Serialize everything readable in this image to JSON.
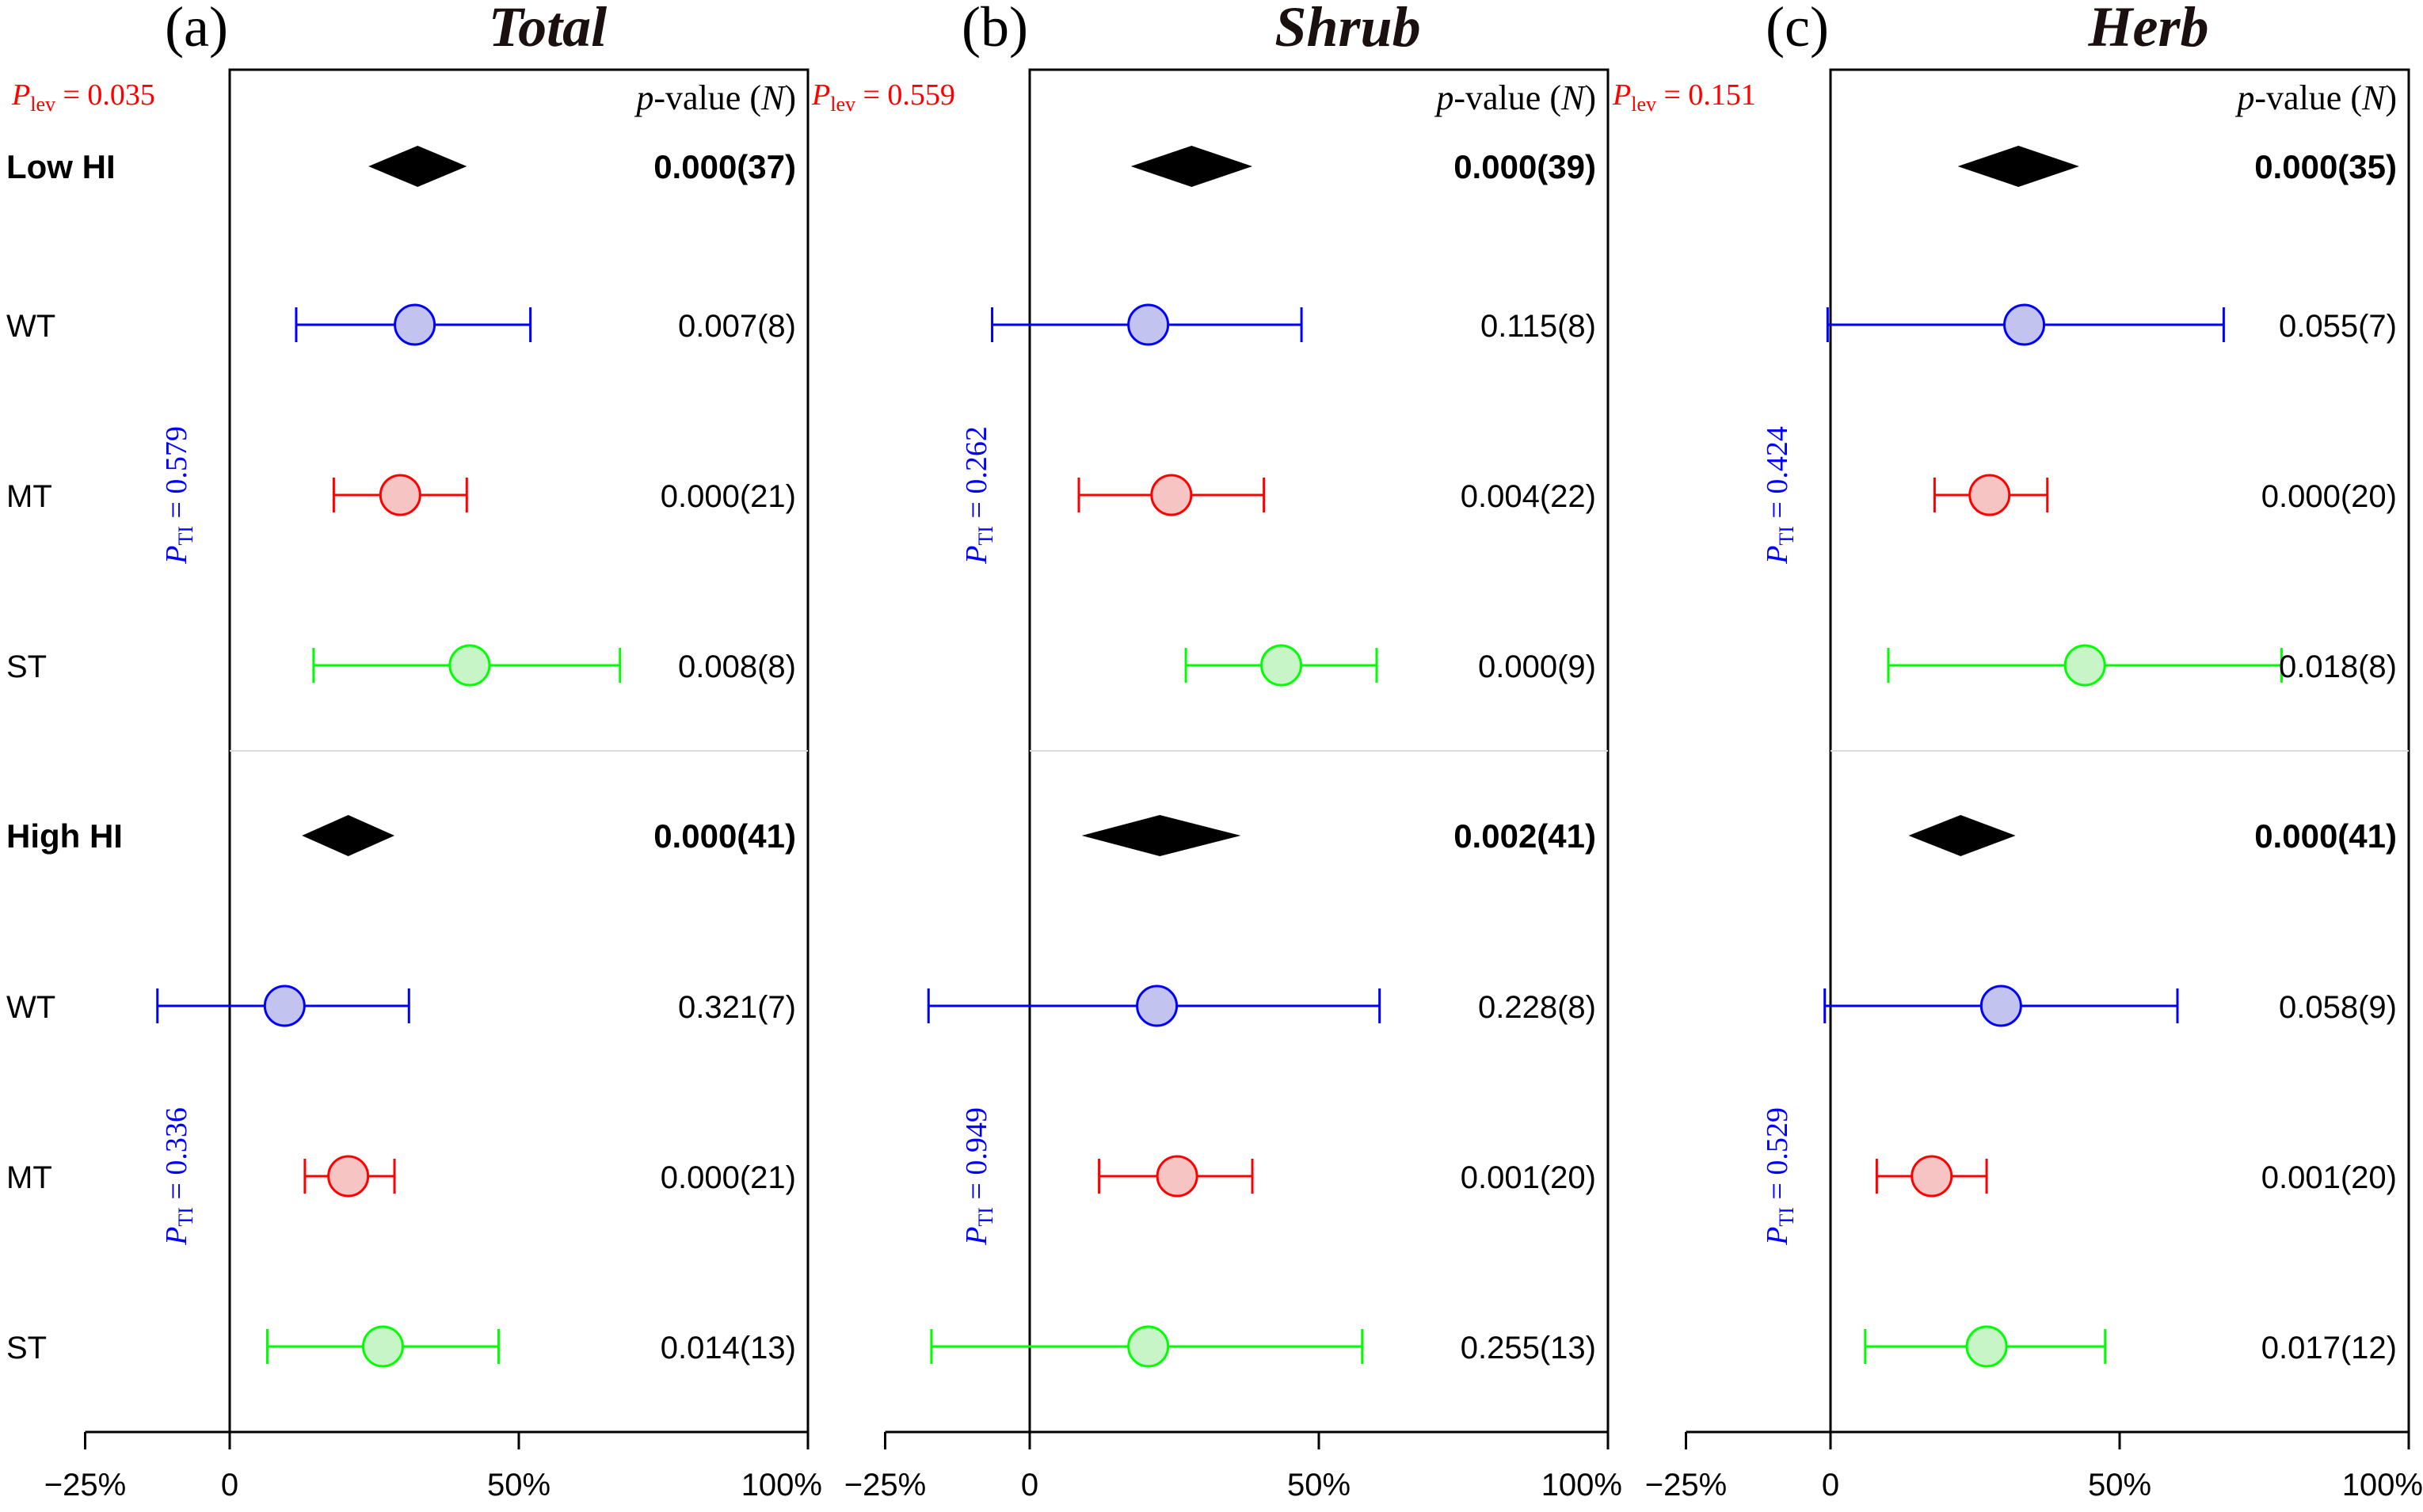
{
  "chart_data": [
    {
      "type": "forest",
      "letter": "(a)",
      "title": "Total",
      "p_lev_label": "P",
      "p_lev_sub": "lev",
      "p_lev_value": "= 0.035",
      "header_p": "p",
      "header_rest": "-value (",
      "header_n": "N",
      "header_close": ")",
      "xlim": [
        -25,
        100
      ],
      "ticks": [
        -25,
        0,
        50,
        100
      ],
      "tick_labels": [
        "−25%",
        "0",
        "50%",
        "100%"
      ],
      "groups": [
        {
          "name": "Low HI",
          "pooled": {
            "mean": 32.5,
            "low": 24.0,
            "high": 41.0,
            "pvalue": "0.000(37)"
          },
          "p_ti_label": "P",
          "p_ti_sub": "TI",
          "p_ti_value": "= 0.579",
          "rows": [
            {
              "label": "WT",
              "mean": 32.0,
              "low": 11.5,
              "high": 52.0,
              "pvalue": "0.007(8)",
              "color": "#0000ff",
              "fill": "#c3c3f0"
            },
            {
              "label": "MT",
              "mean": 29.5,
              "low": 18.0,
              "high": 41.0,
              "pvalue": "0.000(21)",
              "color": "#ff0000",
              "fill": "#f7c4c4"
            },
            {
              "label": "ST",
              "mean": 41.5,
              "low": 14.5,
              "high": 67.5,
              "pvalue": "0.008(8)",
              "color": "#00ff00",
              "fill": "#c8f5c8"
            }
          ]
        },
        {
          "name": "High HI",
          "pooled": {
            "mean": 20.5,
            "low": 12.5,
            "high": 28.5,
            "pvalue": "0.000(41)"
          },
          "p_ti_label": "P",
          "p_ti_sub": "TI",
          "p_ti_value": "= 0.336",
          "rows": [
            {
              "label": "WT",
              "mean": 9.5,
              "low": -12.5,
              "high": 31.0,
              "pvalue": "0.321(7)",
              "color": "#0000ff",
              "fill": "#c3c3f0"
            },
            {
              "label": "MT",
              "mean": 20.5,
              "low": 13.0,
              "high": 28.5,
              "pvalue": "0.000(21)",
              "color": "#ff0000",
              "fill": "#f7c4c4"
            },
            {
              "label": "ST",
              "mean": 26.5,
              "low": 6.5,
              "high": 46.5,
              "pvalue": "0.014(13)",
              "color": "#00ff00",
              "fill": "#c8f5c8"
            }
          ]
        }
      ]
    },
    {
      "type": "forest",
      "letter": "(b)",
      "title": "Shrub",
      "p_lev_label": "P",
      "p_lev_sub": "lev",
      "p_lev_value": "= 0.559",
      "header_p": "p",
      "header_rest": "-value (",
      "header_n": "N",
      "header_close": ")",
      "xlim": [
        -25,
        100
      ],
      "ticks": [
        -25,
        0,
        50,
        100
      ],
      "tick_labels": [
        "−25%",
        "0",
        "50%",
        "100%"
      ],
      "groups": [
        {
          "name": "Low HI",
          "pooled": {
            "mean": 28.0,
            "low": 17.5,
            "high": 38.5,
            "pvalue": "0.000(39)"
          },
          "p_ti_label": "P",
          "p_ti_sub": "TI",
          "p_ti_value": "= 0.262",
          "rows": [
            {
              "label": "WT",
              "mean": 20.5,
              "low": -6.5,
              "high": 47.0,
              "pvalue": "0.115(8)",
              "color": "#0000ff",
              "fill": "#c3c3f0"
            },
            {
              "label": "MT",
              "mean": 24.5,
              "low": 8.5,
              "high": 40.5,
              "pvalue": "0.004(22)",
              "color": "#ff0000",
              "fill": "#f7c4c4"
            },
            {
              "label": "ST",
              "mean": 43.5,
              "low": 27.0,
              "high": 60.0,
              "pvalue": "0.000(9)",
              "color": "#00ff00",
              "fill": "#c8f5c8"
            }
          ]
        },
        {
          "name": "High HI",
          "pooled": {
            "mean": 22.5,
            "low": 9.0,
            "high": 36.5,
            "pvalue": "0.002(41)"
          },
          "p_ti_label": "P",
          "p_ti_sub": "TI",
          "p_ti_value": "= 0.949",
          "rows": [
            {
              "label": "WT",
              "mean": 22.0,
              "low": -17.5,
              "high": 60.5,
              "pvalue": "0.228(8)",
              "color": "#0000ff",
              "fill": "#c3c3f0"
            },
            {
              "label": "MT",
              "mean": 25.5,
              "low": 12.0,
              "high": 38.5,
              "pvalue": "0.001(20)",
              "color": "#ff0000",
              "fill": "#f7c4c4"
            },
            {
              "label": "ST",
              "mean": 20.5,
              "low": -17.0,
              "high": 57.5,
              "pvalue": "0.255(13)",
              "color": "#00ff00",
              "fill": "#c8f5c8"
            }
          ]
        }
      ]
    },
    {
      "type": "forest",
      "letter": "(c)",
      "title": "Herb",
      "p_lev_label": "P",
      "p_lev_sub": "lev",
      "p_lev_value": "= 0.151",
      "header_p": "p",
      "header_rest": "-value (",
      "header_n": "N",
      "header_close": ")",
      "xlim": [
        -25,
        100
      ],
      "ticks": [
        -25,
        0,
        50,
        100
      ],
      "tick_labels": [
        "−25%",
        "0",
        "50%",
        "100%"
      ],
      "groups": [
        {
          "name": "Low HI",
          "pooled": {
            "mean": 32.5,
            "low": 22.0,
            "high": 43.0,
            "pvalue": "0.000(35)"
          },
          "p_ti_label": "P",
          "p_ti_sub": "TI",
          "p_ti_value": "= 0.424",
          "rows": [
            {
              "label": "WT",
              "mean": 33.5,
              "low": -0.5,
              "high": 68.0,
              "pvalue": "0.055(7)",
              "color": "#0000ff",
              "fill": "#c3c3f0"
            },
            {
              "label": "MT",
              "mean": 27.5,
              "low": 18.0,
              "high": 37.5,
              "pvalue": "0.000(20)",
              "color": "#ff0000",
              "fill": "#f7c4c4"
            },
            {
              "label": "ST",
              "mean": 44.0,
              "low": 10.0,
              "high": 78.0,
              "pvalue": "0.018(8)",
              "color": "#00ff00",
              "fill": "#c8f5c8"
            }
          ]
        },
        {
          "name": "High HI",
          "pooled": {
            "mean": 22.5,
            "low": 13.5,
            "high": 32.0,
            "pvalue": "0.000(41)"
          },
          "p_ti_label": "P",
          "p_ti_sub": "TI",
          "p_ti_value": "= 0.529",
          "rows": [
            {
              "label": "WT",
              "mean": 29.5,
              "low": -1.0,
              "high": 60.0,
              "pvalue": "0.058(9)",
              "color": "#0000ff",
              "fill": "#c3c3f0"
            },
            {
              "label": "MT",
              "mean": 17.5,
              "low": 8.0,
              "high": 27.0,
              "pvalue": "0.001(20)",
              "color": "#ff0000",
              "fill": "#f7c4c4"
            },
            {
              "label": "ST",
              "mean": 27.0,
              "low": 6.0,
              "high": 47.5,
              "pvalue": "0.017(12)",
              "color": "#00ff00",
              "fill": "#c8f5c8"
            }
          ]
        }
      ]
    }
  ]
}
